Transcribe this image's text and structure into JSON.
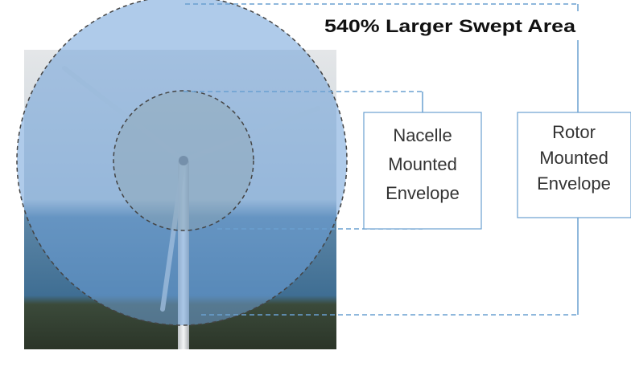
{
  "title": "540% Larger Swept Area",
  "nacelle_label": [
    "Nacelle",
    "Mounted",
    "Envelope"
  ],
  "rotor_label": [
    "Rotor",
    "Mounted",
    "Envelope"
  ]
}
